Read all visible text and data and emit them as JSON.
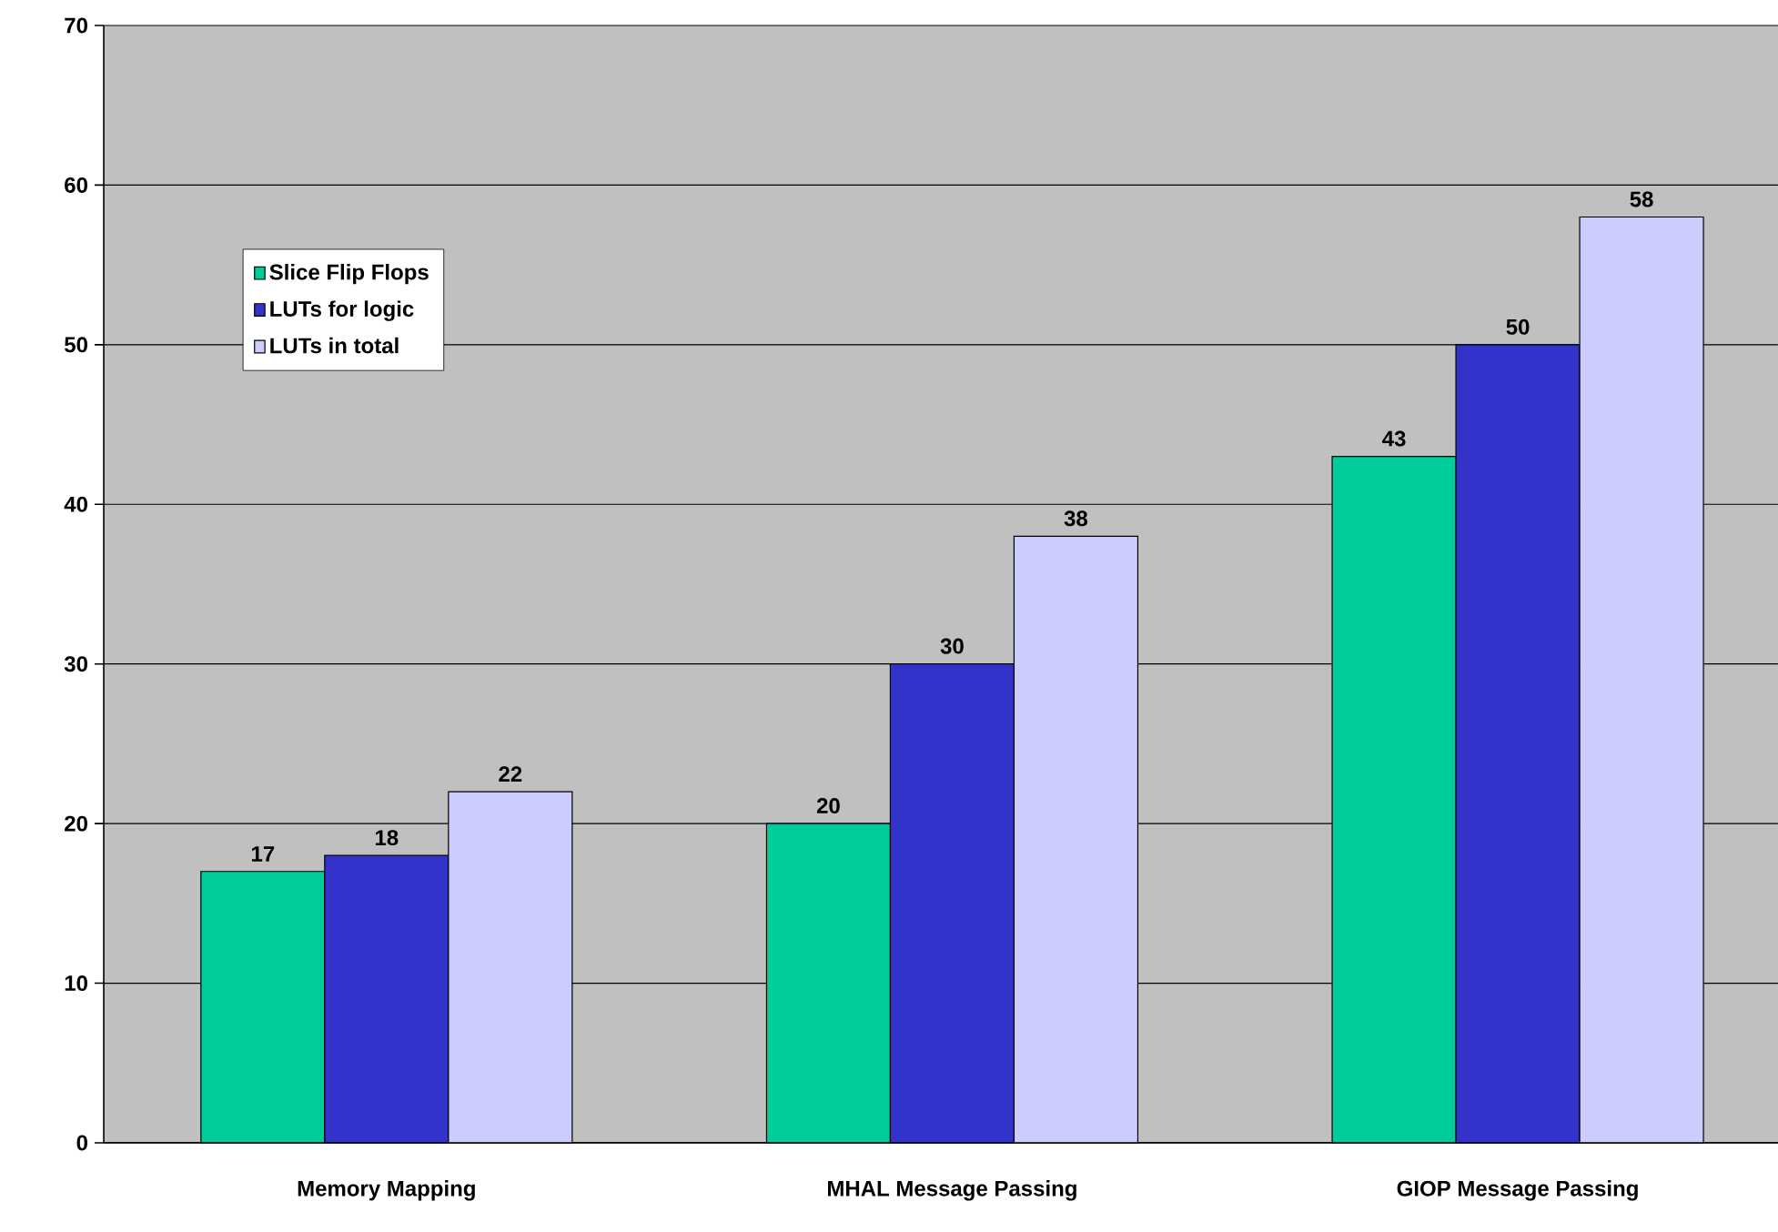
{
  "chart_data": {
    "type": "bar",
    "categories": [
      "Memory Mapping",
      "MHAL Message Passing",
      "GIOP Message Passing"
    ],
    "series": [
      {
        "name": "Slice Flip Flops",
        "color": "#00cc99",
        "values": [
          17,
          20,
          43
        ]
      },
      {
        "name": "LUTs for logic",
        "color": "#3333cc",
        "values": [
          18,
          30,
          50
        ]
      },
      {
        "name": "LUTs in total",
        "color": "#ccccff",
        "values": [
          22,
          38,
          58
        ]
      }
    ],
    "ylim": [
      0,
      70
    ],
    "yticks": [
      0,
      10,
      20,
      30,
      40,
      50,
      60,
      70
    ],
    "grid": "y",
    "legend": "top left",
    "data_labels": true
  }
}
